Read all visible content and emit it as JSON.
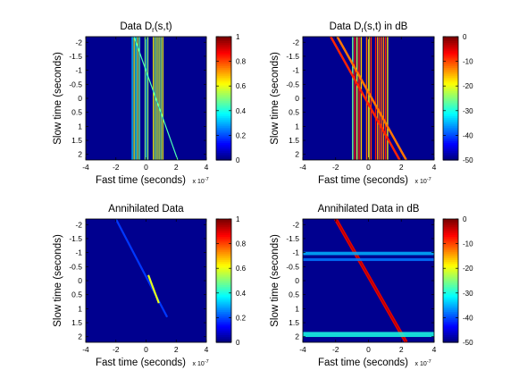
{
  "figure": {
    "background": "#ffffff",
    "axes_background": "#00008f"
  },
  "chart_data": [
    {
      "id": "top-left",
      "type": "heatmap",
      "title": "Data D_r(s,t)",
      "title_main": "Data D",
      "title_sub": "r",
      "title_tail": "(s,t)",
      "xlabel": "Fast time (seconds)",
      "xexponent_prefix": "x 10",
      "xexponent": "-7",
      "ylabel": "Slow time (seconds)",
      "xlim": [
        -4,
        4
      ],
      "ylim": [
        -2.2,
        2.2
      ],
      "y_reversed": true,
      "xticks": [
        "-4",
        "-2",
        "0",
        "2",
        "4"
      ],
      "yticks": [
        "-2",
        "-1.5",
        "-1",
        "-0.5",
        "0",
        "0.5",
        "1",
        "1.5",
        "2"
      ],
      "colorbar": {
        "min": 0,
        "max": 1,
        "ticks": [
          "1",
          "0.8",
          "0.6",
          "0.4",
          "0.2",
          "0"
        ],
        "colormap": "jet"
      },
      "features": {
        "diagonal_line": {
          "x": [
            -0.8,
            2.1
          ],
          "y": [
            -2.2,
            2.2
          ],
          "value": 0.45
        },
        "vertical_bands": [
          {
            "x": [
              -0.95,
              -0.35
            ],
            "value": 0.6
          },
          {
            "x": [
              -0.1,
              0.2
            ],
            "value": 0.55
          },
          {
            "x": [
              0.45,
              1.2
            ],
            "value": 0.65
          }
        ]
      }
    },
    {
      "id": "top-right",
      "type": "heatmap",
      "title": "Data D_r(s,t) in dB",
      "title_main": "Data D",
      "title_sub": "r",
      "title_tail": "(s,t) in dB",
      "xlabel": "Fast time (seconds)",
      "xexponent_prefix": "x 10",
      "xexponent": "-7",
      "ylabel": "Slow time (seconds)",
      "xlim": [
        -4,
        4
      ],
      "ylim": [
        -2.2,
        2.2
      ],
      "y_reversed": true,
      "xticks": [
        "-4",
        "-2",
        "0",
        "2",
        "4"
      ],
      "yticks": [
        "-2",
        "-1.5",
        "-1",
        "-0.5",
        "0",
        "0.5",
        "1",
        "1.5",
        "2"
      ],
      "colorbar": {
        "min": -50,
        "max": 0,
        "ticks": [
          "0",
          "-10",
          "-20",
          "-30",
          "-40",
          "-50"
        ],
        "colormap": "jet"
      },
      "features": {
        "diagonal_lines": [
          {
            "x": [
              -2.3,
              1.9
            ],
            "y": [
              -2.2,
              2.2
            ],
            "value": -8
          },
          {
            "x": [
              -1.9,
              2.3
            ],
            "y": [
              -2.2,
              2.2
            ],
            "value": -12
          }
        ],
        "vertical_bands": [
          {
            "x": [
              -1.0,
              -0.35
            ],
            "value": -6
          },
          {
            "x": [
              -0.15,
              0.25
            ],
            "value": -8
          },
          {
            "x": [
              0.4,
              1.25
            ],
            "value": -5
          }
        ]
      }
    },
    {
      "id": "bottom-left",
      "type": "heatmap",
      "title": "Annihilated Data",
      "xlabel": "Fast time (seconds)",
      "xexponent_prefix": "x 10",
      "xexponent": "-7",
      "ylabel": "Slow time (seconds)",
      "xlim": [
        -4,
        4
      ],
      "ylim": [
        -2.2,
        2.2
      ],
      "y_reversed": true,
      "xticks": [
        "-4",
        "-2",
        "0",
        "2",
        "4"
      ],
      "yticks": [
        "-2",
        "-1.5",
        "-1",
        "-0.5",
        "0",
        "0.5",
        "1",
        "1.5",
        "2"
      ],
      "colorbar": {
        "min": 0,
        "max": 1,
        "ticks": [
          "1",
          "0.8",
          "0.6",
          "0.4",
          "0.2",
          "0"
        ],
        "colormap": "jet"
      },
      "features": {
        "diagonal_streak": {
          "x": [
            -2.0,
            1.4
          ],
          "y": [
            -2.2,
            1.3
          ],
          "peak_x": 0.5,
          "peak_y": 0.3,
          "peak_value": 0.6
        }
      }
    },
    {
      "id": "bottom-right",
      "type": "heatmap",
      "title": "Annihilated Data in dB",
      "xlabel": "Fast time (seconds)",
      "xexponent_prefix": "x 10",
      "xexponent": "-7",
      "ylabel": "Slow time (seconds)",
      "xlim": [
        -4,
        4
      ],
      "ylim": [
        -2.2,
        2.2
      ],
      "y_reversed": true,
      "xticks": [
        "-4",
        "-2",
        "0",
        "2",
        "4"
      ],
      "yticks": [
        "-2",
        "-1.5",
        "-1",
        "-0.5",
        "0",
        "0.5",
        "1",
        "1.5",
        "2"
      ],
      "colorbar": {
        "min": -50,
        "max": 0,
        "ticks": [
          "0",
          "-10",
          "-20",
          "-30",
          "-40",
          "-50"
        ],
        "colormap": "jet"
      },
      "features": {
        "diagonal_line": {
          "x": [
            -2.0,
            2.3
          ],
          "y": [
            -2.2,
            2.2
          ],
          "value": -5
        },
        "horizontal_bands": [
          {
            "y": -0.97,
            "height": 0.12,
            "value": -35
          },
          {
            "y": -0.75,
            "height": 0.1,
            "value": -38
          },
          {
            "y": 1.92,
            "height": 0.18,
            "value": -30
          }
        ]
      }
    }
  ]
}
